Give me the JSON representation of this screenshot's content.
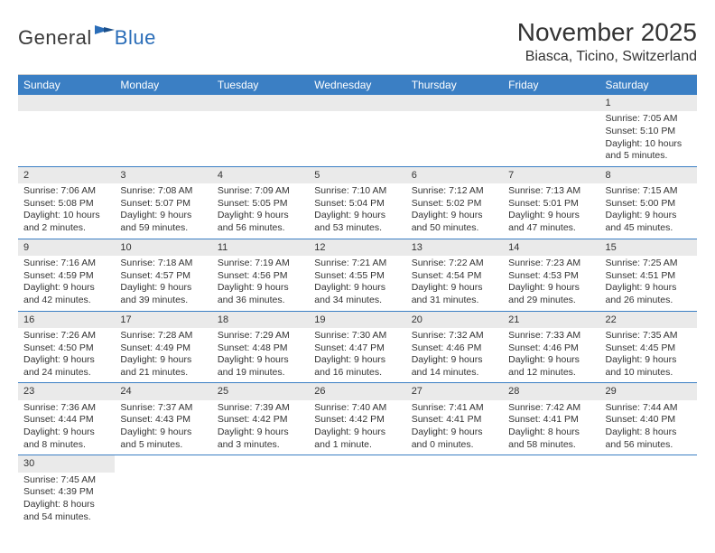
{
  "logo": {
    "general": "General",
    "blue": "Blue"
  },
  "title": "November 2025",
  "location": "Biasca, Ticino, Switzerland",
  "colors": {
    "header_bg": "#3b7fc4",
    "header_text": "#ffffff",
    "daynum_bg": "#eaeaea",
    "border": "#3b7fc4",
    "logo_general": "#3a3a3a",
    "logo_blue": "#2a6db8"
  },
  "weekdays": [
    "Sunday",
    "Monday",
    "Tuesday",
    "Wednesday",
    "Thursday",
    "Friday",
    "Saturday"
  ],
  "weeks": [
    [
      null,
      null,
      null,
      null,
      null,
      null,
      {
        "n": "1",
        "sr": "Sunrise: 7:05 AM",
        "ss": "Sunset: 5:10 PM",
        "dl1": "Daylight: 10 hours",
        "dl2": "and 5 minutes."
      }
    ],
    [
      {
        "n": "2",
        "sr": "Sunrise: 7:06 AM",
        "ss": "Sunset: 5:08 PM",
        "dl1": "Daylight: 10 hours",
        "dl2": "and 2 minutes."
      },
      {
        "n": "3",
        "sr": "Sunrise: 7:08 AM",
        "ss": "Sunset: 5:07 PM",
        "dl1": "Daylight: 9 hours",
        "dl2": "and 59 minutes."
      },
      {
        "n": "4",
        "sr": "Sunrise: 7:09 AM",
        "ss": "Sunset: 5:05 PM",
        "dl1": "Daylight: 9 hours",
        "dl2": "and 56 minutes."
      },
      {
        "n": "5",
        "sr": "Sunrise: 7:10 AM",
        "ss": "Sunset: 5:04 PM",
        "dl1": "Daylight: 9 hours",
        "dl2": "and 53 minutes."
      },
      {
        "n": "6",
        "sr": "Sunrise: 7:12 AM",
        "ss": "Sunset: 5:02 PM",
        "dl1": "Daylight: 9 hours",
        "dl2": "and 50 minutes."
      },
      {
        "n": "7",
        "sr": "Sunrise: 7:13 AM",
        "ss": "Sunset: 5:01 PM",
        "dl1": "Daylight: 9 hours",
        "dl2": "and 47 minutes."
      },
      {
        "n": "8",
        "sr": "Sunrise: 7:15 AM",
        "ss": "Sunset: 5:00 PM",
        "dl1": "Daylight: 9 hours",
        "dl2": "and 45 minutes."
      }
    ],
    [
      {
        "n": "9",
        "sr": "Sunrise: 7:16 AM",
        "ss": "Sunset: 4:59 PM",
        "dl1": "Daylight: 9 hours",
        "dl2": "and 42 minutes."
      },
      {
        "n": "10",
        "sr": "Sunrise: 7:18 AM",
        "ss": "Sunset: 4:57 PM",
        "dl1": "Daylight: 9 hours",
        "dl2": "and 39 minutes."
      },
      {
        "n": "11",
        "sr": "Sunrise: 7:19 AM",
        "ss": "Sunset: 4:56 PM",
        "dl1": "Daylight: 9 hours",
        "dl2": "and 36 minutes."
      },
      {
        "n": "12",
        "sr": "Sunrise: 7:21 AM",
        "ss": "Sunset: 4:55 PM",
        "dl1": "Daylight: 9 hours",
        "dl2": "and 34 minutes."
      },
      {
        "n": "13",
        "sr": "Sunrise: 7:22 AM",
        "ss": "Sunset: 4:54 PM",
        "dl1": "Daylight: 9 hours",
        "dl2": "and 31 minutes."
      },
      {
        "n": "14",
        "sr": "Sunrise: 7:23 AM",
        "ss": "Sunset: 4:53 PM",
        "dl1": "Daylight: 9 hours",
        "dl2": "and 29 minutes."
      },
      {
        "n": "15",
        "sr": "Sunrise: 7:25 AM",
        "ss": "Sunset: 4:51 PM",
        "dl1": "Daylight: 9 hours",
        "dl2": "and 26 minutes."
      }
    ],
    [
      {
        "n": "16",
        "sr": "Sunrise: 7:26 AM",
        "ss": "Sunset: 4:50 PM",
        "dl1": "Daylight: 9 hours",
        "dl2": "and 24 minutes."
      },
      {
        "n": "17",
        "sr": "Sunrise: 7:28 AM",
        "ss": "Sunset: 4:49 PM",
        "dl1": "Daylight: 9 hours",
        "dl2": "and 21 minutes."
      },
      {
        "n": "18",
        "sr": "Sunrise: 7:29 AM",
        "ss": "Sunset: 4:48 PM",
        "dl1": "Daylight: 9 hours",
        "dl2": "and 19 minutes."
      },
      {
        "n": "19",
        "sr": "Sunrise: 7:30 AM",
        "ss": "Sunset: 4:47 PM",
        "dl1": "Daylight: 9 hours",
        "dl2": "and 16 minutes."
      },
      {
        "n": "20",
        "sr": "Sunrise: 7:32 AM",
        "ss": "Sunset: 4:46 PM",
        "dl1": "Daylight: 9 hours",
        "dl2": "and 14 minutes."
      },
      {
        "n": "21",
        "sr": "Sunrise: 7:33 AM",
        "ss": "Sunset: 4:46 PM",
        "dl1": "Daylight: 9 hours",
        "dl2": "and 12 minutes."
      },
      {
        "n": "22",
        "sr": "Sunrise: 7:35 AM",
        "ss": "Sunset: 4:45 PM",
        "dl1": "Daylight: 9 hours",
        "dl2": "and 10 minutes."
      }
    ],
    [
      {
        "n": "23",
        "sr": "Sunrise: 7:36 AM",
        "ss": "Sunset: 4:44 PM",
        "dl1": "Daylight: 9 hours",
        "dl2": "and 8 minutes."
      },
      {
        "n": "24",
        "sr": "Sunrise: 7:37 AM",
        "ss": "Sunset: 4:43 PM",
        "dl1": "Daylight: 9 hours",
        "dl2": "and 5 minutes."
      },
      {
        "n": "25",
        "sr": "Sunrise: 7:39 AM",
        "ss": "Sunset: 4:42 PM",
        "dl1": "Daylight: 9 hours",
        "dl2": "and 3 minutes."
      },
      {
        "n": "26",
        "sr": "Sunrise: 7:40 AM",
        "ss": "Sunset: 4:42 PM",
        "dl1": "Daylight: 9 hours",
        "dl2": "and 1 minute."
      },
      {
        "n": "27",
        "sr": "Sunrise: 7:41 AM",
        "ss": "Sunset: 4:41 PM",
        "dl1": "Daylight: 9 hours",
        "dl2": "and 0 minutes."
      },
      {
        "n": "28",
        "sr": "Sunrise: 7:42 AM",
        "ss": "Sunset: 4:41 PM",
        "dl1": "Daylight: 8 hours",
        "dl2": "and 58 minutes."
      },
      {
        "n": "29",
        "sr": "Sunrise: 7:44 AM",
        "ss": "Sunset: 4:40 PM",
        "dl1": "Daylight: 8 hours",
        "dl2": "and 56 minutes."
      }
    ],
    [
      {
        "n": "30",
        "sr": "Sunrise: 7:45 AM",
        "ss": "Sunset: 4:39 PM",
        "dl1": "Daylight: 8 hours",
        "dl2": "and 54 minutes."
      },
      null,
      null,
      null,
      null,
      null,
      null
    ]
  ]
}
